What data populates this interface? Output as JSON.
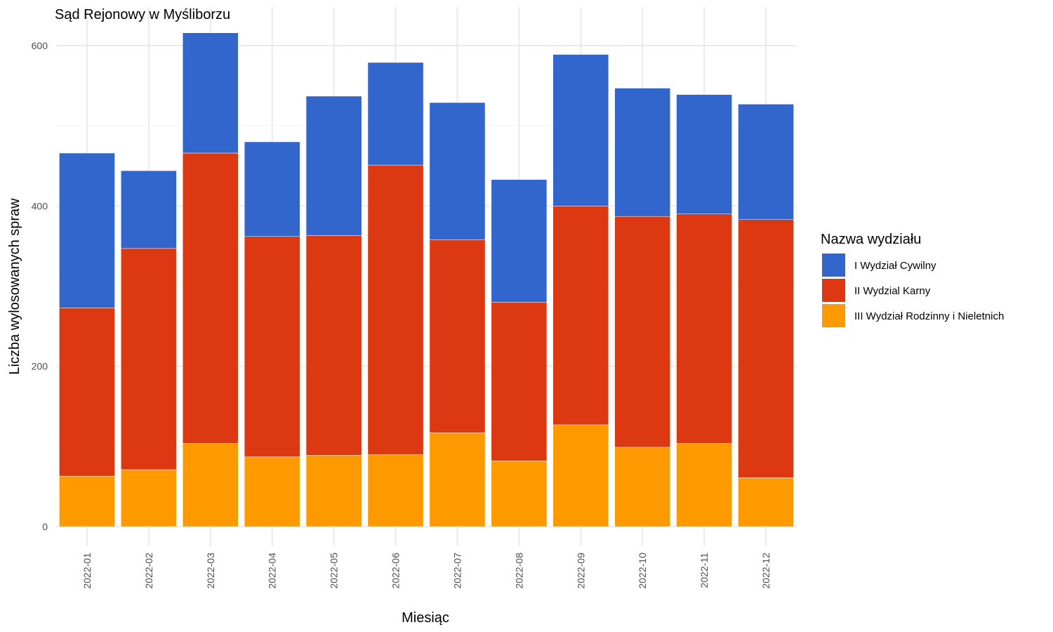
{
  "chart_data": {
    "type": "bar",
    "stacked": true,
    "title": "Sąd Rejonowy w Myśliborzu",
    "xlabel": "Miesiąc",
    "ylabel": "Liczba wylosowanych spraw",
    "ylim": [
      0,
      620
    ],
    "yticks": [
      0,
      200,
      400,
      600
    ],
    "grid": true,
    "legend_title": "Nazwa wydziału",
    "legend_position": "right",
    "categories": [
      "2022-01",
      "2022-02",
      "2022-03",
      "2022-04",
      "2022-05",
      "2022-06",
      "2022-07",
      "2022-08",
      "2022-09",
      "2022-10",
      "2022-11",
      "2022-12"
    ],
    "series": [
      {
        "name": "I Wydział Cywilny",
        "color": "#3366cc",
        "values": [
          193,
          97,
          150,
          118,
          174,
          128,
          171,
          153,
          189,
          160,
          149,
          144
        ]
      },
      {
        "name": "II Wydzial Karny",
        "color": "#dc3912",
        "values": [
          210,
          276,
          362,
          275,
          274,
          361,
          241,
          198,
          273,
          288,
          286,
          322
        ]
      },
      {
        "name": "III Wydział Rodzinny i Nieletnich",
        "color": "#ff9900",
        "values": [
          63,
          71,
          104,
          87,
          89,
          90,
          117,
          82,
          127,
          99,
          104,
          61
        ]
      }
    ]
  }
}
